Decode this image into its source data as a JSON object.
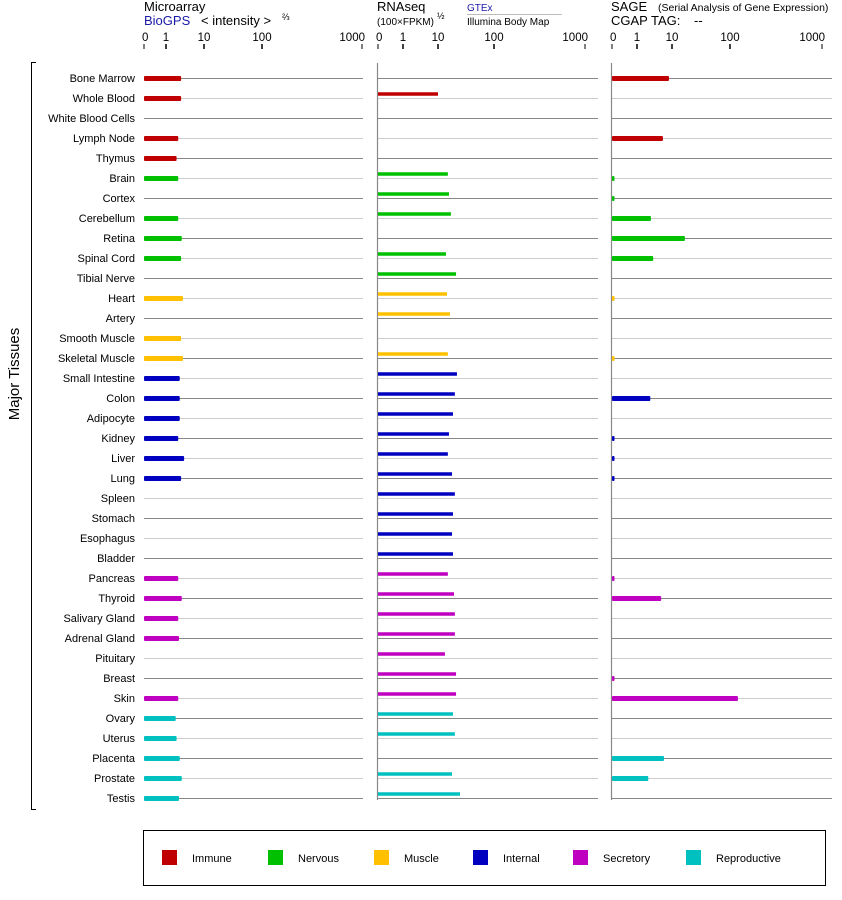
{
  "chart_data": {
    "type": "bar",
    "orientation": "horizontal",
    "ylabel": "Major Tissues",
    "tissues": [
      "Bone Marrow",
      "Whole Blood",
      "White Blood Cells",
      "Lymph Node",
      "Thymus",
      "Brain",
      "Cortex",
      "Cerebellum",
      "Retina",
      "Spinal Cord",
      "Tibial Nerve",
      "Heart",
      "Artery",
      "Smooth Muscle",
      "Skeletal Muscle",
      "Small Intestine",
      "Colon",
      "Adipocyte",
      "Kidney",
      "Liver",
      "Lung",
      "Spleen",
      "Stomach",
      "Esophagus",
      "Bladder",
      "Pancreas",
      "Thyroid",
      "Salivary Gland",
      "Adrenal Gland",
      "Pituitary",
      "Breast",
      "Skin",
      "Ovary",
      "Uterus",
      "Placenta",
      "Prostate",
      "Testis"
    ],
    "tissue_groups": [
      "Immune",
      "Immune",
      "Immune",
      "Immune",
      "Immune",
      "Nervous",
      "Nervous",
      "Nervous",
      "Nervous",
      "Nervous",
      "Nervous",
      "Muscle",
      "Muscle",
      "Muscle",
      "Muscle",
      "Internal",
      "Internal",
      "Internal",
      "Internal",
      "Internal",
      "Internal",
      "Internal",
      "Internal",
      "Internal",
      "Internal",
      "Secretory",
      "Secretory",
      "Secretory",
      "Secretory",
      "Secretory",
      "Secretory",
      "Secretory",
      "Reproductive",
      "Reproductive",
      "Reproductive",
      "Reproductive",
      "Reproductive"
    ],
    "legend": [
      {
        "name": "Immune",
        "color": "#c00000"
      },
      {
        "name": "Nervous",
        "color": "#00c000"
      },
      {
        "name": "Muscle",
        "color": "#ffc000"
      },
      {
        "name": "Internal",
        "color": "#0000c0"
      },
      {
        "name": "Secretory",
        "color": "#c000c0"
      },
      {
        "name": "Reproductive",
        "color": "#00c0c0"
      }
    ],
    "legend_placement": "bottom",
    "tick_labels": [
      "0",
      "1",
      "10",
      "100",
      "1000"
    ],
    "tick_values": [
      0,
      1,
      10,
      100,
      1000
    ],
    "panels": [
      {
        "title": "Microarray",
        "source": "BioGPS",
        "unit_prefix": "< intensity >",
        "unit_exp": "⅔",
        "values": [
          2.5,
          2.5,
          null,
          2.1,
          1.9,
          2.1,
          null,
          2.1,
          2.6,
          2.5,
          null,
          2.8,
          null,
          2.5,
          2.8,
          2.3,
          2.3,
          2.3,
          2.1,
          3.0,
          2.5,
          null,
          null,
          null,
          null,
          2.1,
          2.6,
          2.1,
          2.2,
          null,
          null,
          2.1,
          1.8,
          1.9,
          2.3,
          2.6,
          2.2
        ]
      },
      {
        "title": "RNAseq",
        "unit": "(100×FPKM)",
        "unit_exp": "½",
        "source": "GTEx",
        "source2": "Illumina Body Map",
        "values": [
          null,
          10,
          null,
          null,
          null,
          15,
          15.7,
          17,
          null,
          13.9,
          21,
          14.5,
          16.3,
          null,
          15,
          21.8,
          20,
          18.5,
          15.7,
          15,
          17.8,
          20,
          18.5,
          17.8,
          18.5,
          15,
          19.3,
          20,
          20,
          13.3,
          21,
          21,
          18.5,
          20,
          null,
          17.8,
          24.7
        ]
      },
      {
        "title": "SAGE",
        "subtitle": "(Serial Analysis of Gene Expression)",
        "tag_label": "CGAP TAG:",
        "tag_value": "--",
        "values": [
          8.2,
          null,
          null,
          5.5,
          null,
          0.1,
          0.1,
          2.5,
          16.7,
          2.9,
          null,
          0.1,
          null,
          null,
          0.1,
          null,
          2.4,
          null,
          0.1,
          0.1,
          0.1,
          null,
          null,
          null,
          null,
          0.1,
          4.9,
          null,
          null,
          null,
          0.1,
          122,
          null,
          null,
          5.9,
          2.1,
          null
        ]
      }
    ]
  }
}
